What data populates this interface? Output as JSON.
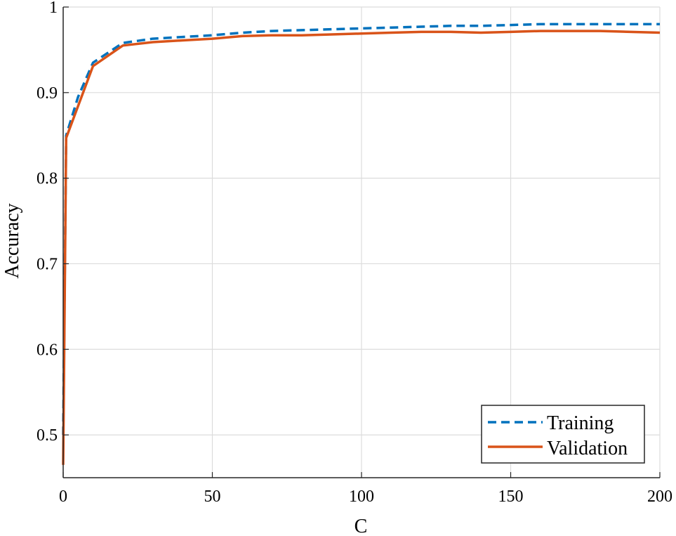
{
  "chart_data": {
    "type": "line",
    "title": "",
    "xlabel": "C",
    "ylabel": "Accuracy",
    "xlim": [
      0,
      200
    ],
    "ylim": [
      0.45,
      1.0
    ],
    "xticks": [
      0,
      50,
      100,
      150,
      200
    ],
    "xtick_labels": [
      "0",
      "50",
      "100",
      "150",
      "200"
    ],
    "yticks": [
      0.5,
      0.6,
      0.7,
      0.8,
      0.9,
      1.0
    ],
    "ytick_labels": [
      "0.5",
      "0.6",
      "0.7",
      "0.8",
      "0.9",
      "1"
    ],
    "grid": true,
    "legend_position": "bottom-right",
    "series": [
      {
        "name": "Training",
        "style": "dashed",
        "color": "#0072BD",
        "x": [
          0,
          1,
          5,
          10,
          20,
          30,
          40,
          50,
          60,
          70,
          80,
          90,
          100,
          110,
          120,
          130,
          140,
          150,
          160,
          170,
          180,
          190,
          200
        ],
        "y": [
          0.5,
          0.85,
          0.895,
          0.935,
          0.958,
          0.963,
          0.965,
          0.967,
          0.97,
          0.972,
          0.973,
          0.974,
          0.975,
          0.976,
          0.977,
          0.978,
          0.978,
          0.979,
          0.98,
          0.98,
          0.98,
          0.98,
          0.98
        ]
      },
      {
        "name": "Validation",
        "style": "solid",
        "color": "#D95319",
        "x": [
          0,
          1,
          10,
          20,
          30,
          40,
          50,
          60,
          70,
          80,
          90,
          100,
          110,
          120,
          130,
          140,
          150,
          160,
          170,
          180,
          190,
          200
        ],
        "y": [
          0.465,
          0.847,
          0.931,
          0.955,
          0.959,
          0.961,
          0.963,
          0.966,
          0.967,
          0.967,
          0.968,
          0.969,
          0.97,
          0.971,
          0.971,
          0.97,
          0.971,
          0.972,
          0.972,
          0.972,
          0.971,
          0.97
        ]
      }
    ]
  }
}
